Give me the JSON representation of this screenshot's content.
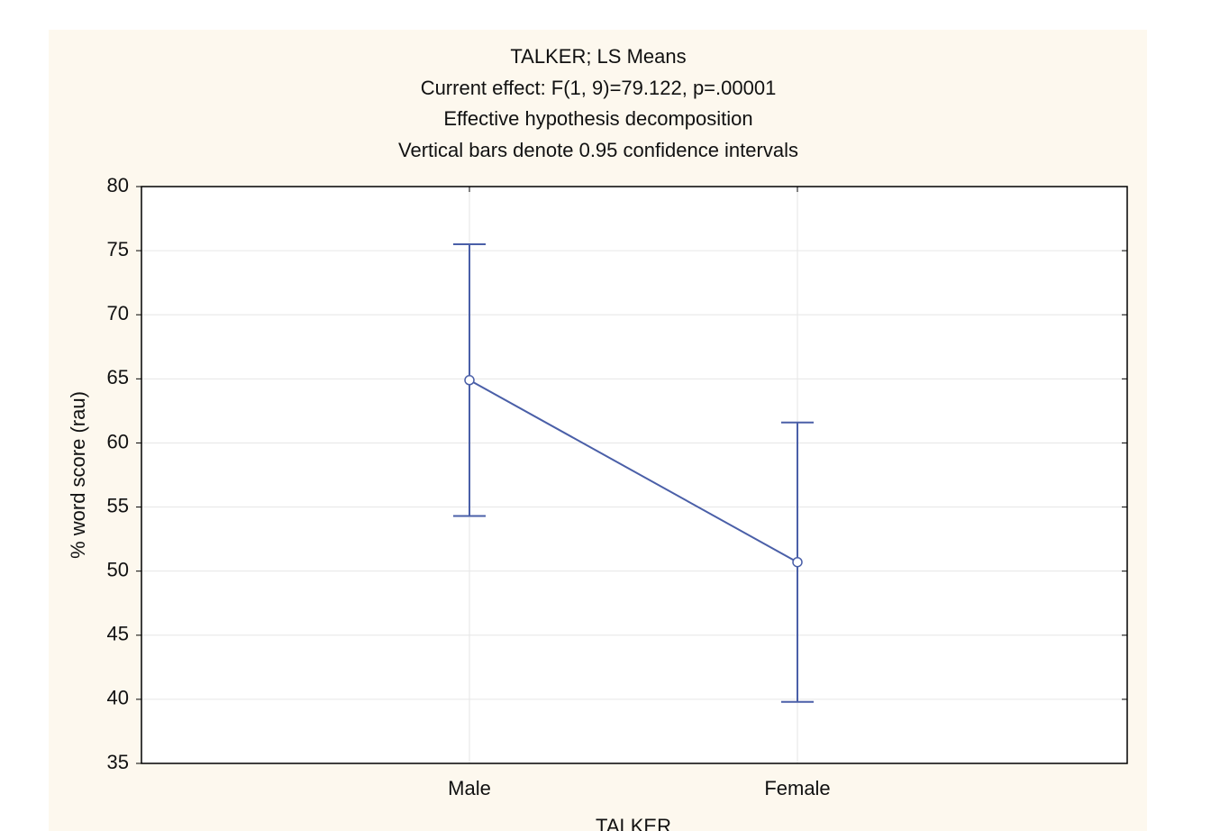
{
  "chart_data": {
    "type": "line",
    "title": "TALKER; LS Means",
    "subtitle": [
      "Current effect: F(1, 9)=79.122, p=.00001",
      "Effective hypothesis decomposition",
      "Vertical bars denote 0.95 confidence intervals"
    ],
    "x_label": "TALKER",
    "y_label": "% word score (rau)",
    "categories": [
      "Male",
      "Female"
    ],
    "series": [
      {
        "color": "#4a5fa8",
        "values": [
          64.9,
          50.7
        ],
        "errors": [
          10.6,
          10.9
        ]
      }
    ],
    "ylim": [
      35,
      80
    ],
    "yticks": [
      35,
      40,
      45,
      50,
      55,
      60,
      65,
      70,
      75,
      80
    ],
    "grid": true
  }
}
